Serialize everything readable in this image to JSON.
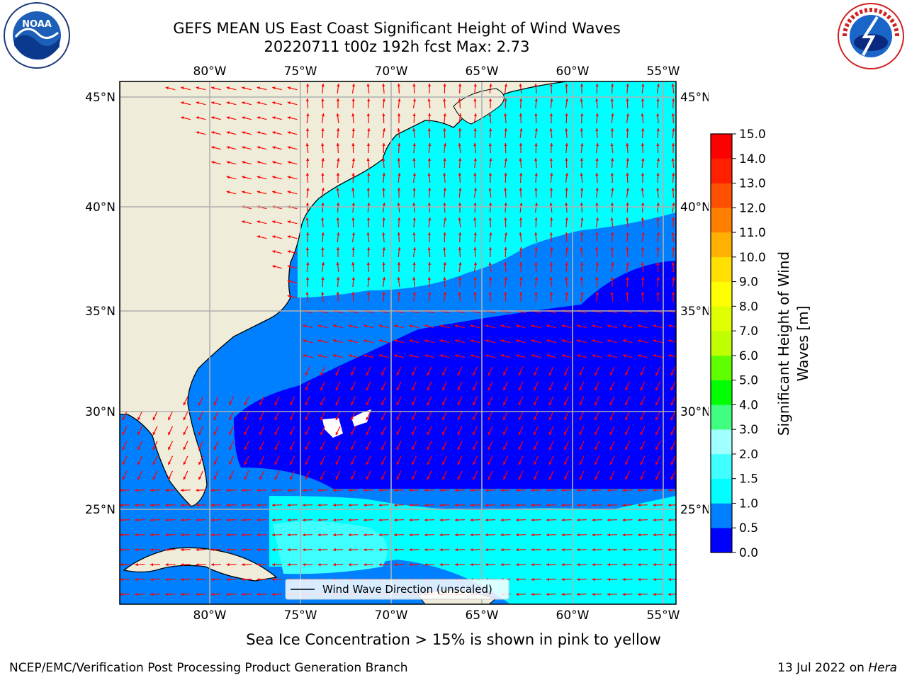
{
  "header": {
    "title_line1": "GEFS MEAN US East Coast Significant Height of Wind Waves",
    "title_line2": "20220711 t00z 192h fcst   Max: 2.73"
  },
  "logos": {
    "left": {
      "icon": "noaa-logo",
      "text": "NOAA"
    },
    "right": {
      "icon": "nws-logo",
      "text": "NATIONAL WEATHER SERVICE"
    }
  },
  "map": {
    "lon_labels": [
      "80°W",
      "75°W",
      "70°W",
      "65°W",
      "60°W",
      "55°W"
    ],
    "lat_labels": [
      "45°N",
      "40°N",
      "35°N",
      "30°N",
      "25°N"
    ],
    "legend_label": "Wind Wave Direction (unscaled)",
    "colors": {
      "land": "#efedda",
      "arrow": "#ff0000",
      "grid": "#b0b0b0"
    }
  },
  "colorbar": {
    "label_line1": "Significant Height of Wind",
    "label_line2": "Waves [m]",
    "ticks": [
      "0.0",
      "0.5",
      "1.0",
      "1.5",
      "2.0",
      "3.0",
      "4.0",
      "5.0",
      "6.0",
      "7.0",
      "8.0",
      "9.0",
      "10.0",
      "11.0",
      "12.0",
      "13.0",
      "14.0",
      "15.0"
    ],
    "colors": [
      "#0000ff",
      "#0080ff",
      "#00ffff",
      "#40ffff",
      "#a0ffff",
      "#40ff80",
      "#00ff00",
      "#60ff00",
      "#c0ff00",
      "#e0ff00",
      "#ffff00",
      "#ffe000",
      "#ffb000",
      "#ff8000",
      "#ff5000",
      "#ff2000",
      "#ff0000"
    ]
  },
  "footer": {
    "subtitle": "Sea Ice Concentration > 15% is shown in pink to yellow",
    "credit": "NCEP/EMC/Verification Post Processing Product Generation Branch",
    "date": "13 Jul 2022 on",
    "machine": "Hera"
  }
}
